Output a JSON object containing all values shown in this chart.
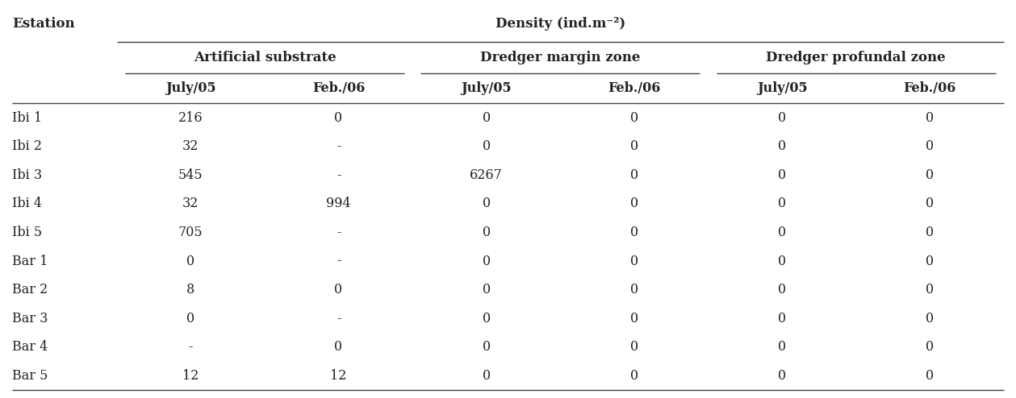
{
  "title_station": "Estation",
  "title_density": "Density (ind.m⁻²)",
  "col_groups": [
    {
      "label": "Artificial substrate",
      "subcols": [
        "July/05",
        "Feb./06"
      ]
    },
    {
      "label": "Dredger margin zone",
      "subcols": [
        "July/05",
        "Feb./06"
      ]
    },
    {
      "label": "Dredger profundal zone",
      "subcols": [
        "July/05",
        "Feb./06"
      ]
    }
  ],
  "rows": [
    {
      "station": "Ibi 1",
      "data": [
        "216",
        "0",
        "0",
        "0",
        "0",
        "0"
      ]
    },
    {
      "station": "Ibi 2",
      "data": [
        "32",
        "-",
        "0",
        "0",
        "0",
        "0"
      ]
    },
    {
      "station": "Ibi 3",
      "data": [
        "545",
        "-",
        "6267",
        "0",
        "0",
        "0"
      ]
    },
    {
      "station": "Ibi 4",
      "data": [
        "32",
        "994",
        "0",
        "0",
        "0",
        "0"
      ]
    },
    {
      "station": "Ibi 5",
      "data": [
        "705",
        "-",
        "0",
        "0",
        "0",
        "0"
      ]
    },
    {
      "station": "Bar 1",
      "data": [
        "0",
        "-",
        "0",
        "0",
        "0",
        "0"
      ]
    },
    {
      "station": "Bar 2",
      "data": [
        "8",
        "0",
        "0",
        "0",
        "0",
        "0"
      ]
    },
    {
      "station": "Bar 3",
      "data": [
        "0",
        "-",
        "0",
        "0",
        "0",
        "0"
      ]
    },
    {
      "station": "Bar 4",
      "data": [
        "-",
        "0",
        "0",
        "0",
        "0",
        "0"
      ]
    },
    {
      "station": "Bar 5",
      "data": [
        "12",
        "12",
        "0",
        "0",
        "0",
        "0"
      ]
    }
  ],
  "bg_color": "#ffffff",
  "text_color": "#222222",
  "line_color": "#444444",
  "font_size": 11.5,
  "header_font_size": 12,
  "station_font_size": 12
}
